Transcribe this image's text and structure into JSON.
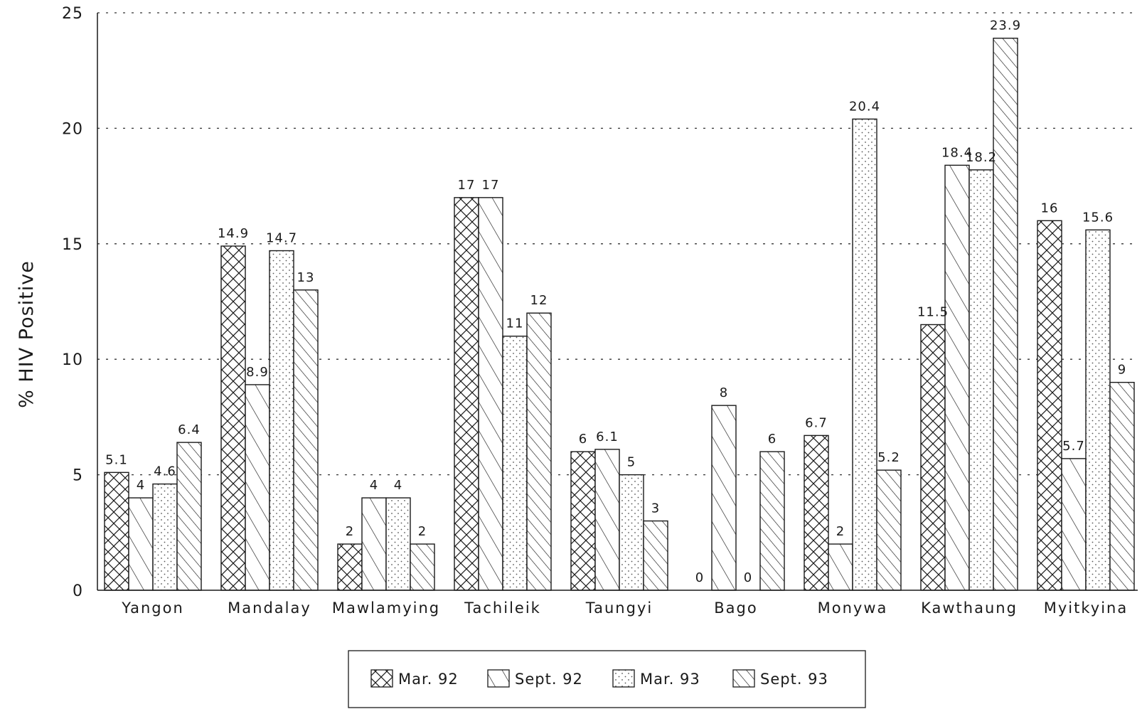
{
  "chart_data": {
    "type": "bar",
    "ylabel": "% HIV Positive",
    "ylim": [
      0,
      25
    ],
    "yticks": [
      "0",
      "5",
      "10",
      "15",
      "20",
      "25"
    ],
    "grid": "horizontal-dotted",
    "legend_position": "bottom-center",
    "categories": [
      "Yangon",
      "Mandalay",
      "Mawlamying",
      "Tachileik",
      "Taungyi",
      "Bago",
      "Monywa",
      "Kawthaung",
      "Myitkyina"
    ],
    "series": [
      {
        "name": "Mar. 92",
        "pattern": "crosshatch",
        "values": [
          5.1,
          14.9,
          2,
          17,
          6,
          0,
          6.7,
          11.5,
          16
        ],
        "labels": [
          "5.1",
          "14.9",
          "2",
          "17",
          "6",
          "0",
          "6.7",
          "11.5",
          "16"
        ]
      },
      {
        "name": "Sept. 92",
        "pattern": "sparse-diagonal",
        "values": [
          4,
          8.9,
          4,
          17,
          6.1,
          8,
          2,
          18.4,
          5.7
        ],
        "labels": [
          "4",
          "8.9",
          "4",
          "17",
          "6.1",
          "8",
          "2",
          "18.4",
          "5.7"
        ]
      },
      {
        "name": "Mar. 93",
        "pattern": "dots",
        "values": [
          4.6,
          14.7,
          4,
          11,
          5,
          0,
          20.4,
          18.2,
          15.6
        ],
        "labels": [
          "4.6",
          "14.7",
          "4",
          "11",
          "5",
          "0",
          "20.4",
          "18.2",
          "15.6"
        ]
      },
      {
        "name": "Sept. 93",
        "pattern": "dense-diagonal",
        "values": [
          6.4,
          13,
          2,
          12,
          3,
          6,
          5.2,
          23.9,
          9
        ],
        "labels": [
          "6.4",
          "13",
          "2",
          "12",
          "3",
          "6",
          "5.2",
          "23.9",
          "9"
        ]
      }
    ]
  },
  "colors": {
    "ink": "#1a1a1a",
    "background": "#ffffff"
  }
}
